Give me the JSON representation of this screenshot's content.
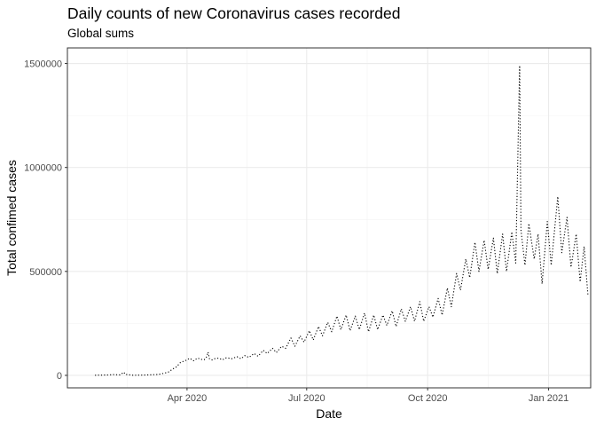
{
  "chart_data": {
    "type": "line",
    "title": "Daily counts of new Coronavirus cases recorded",
    "subtitle": "Global sums",
    "xlabel": "Date",
    "ylabel": "Total confimed cases",
    "x_ticks": [
      {
        "label": "Apr 2020",
        "date": "2020-04-01"
      },
      {
        "label": "Jul 2020",
        "date": "2020-07-01"
      },
      {
        "label": "Oct 2020",
        "date": "2020-10-01"
      },
      {
        "label": "Jan 2021",
        "date": "2021-01-01"
      }
    ],
    "y_ticks": [
      0,
      500000,
      1000000,
      1500000
    ],
    "xlim": [
      "2020-01-01",
      "2021-02-02"
    ],
    "ylim": [
      -60000,
      1575000
    ],
    "grid": true,
    "line_style": "dotted",
    "line_color": "#000000",
    "series": [
      {
        "values": [
          [
            "2020-01-22",
            550
          ],
          [
            "2020-02-01",
            2100
          ],
          [
            "2020-02-05",
            3700
          ],
          [
            "2020-02-10",
            2500
          ],
          [
            "2020-02-13",
            15100
          ],
          [
            "2020-02-14",
            5000
          ],
          [
            "2020-02-20",
            600
          ],
          [
            "2020-02-25",
            1000
          ],
          [
            "2020-03-01",
            1900
          ],
          [
            "2020-03-05",
            2800
          ],
          [
            "2020-03-10",
            4500
          ],
          [
            "2020-03-15",
            11000
          ],
          [
            "2020-03-18",
            16500
          ],
          [
            "2020-03-21",
            30000
          ],
          [
            "2020-03-24",
            41000
          ],
          [
            "2020-03-27",
            62000
          ],
          [
            "2020-03-31",
            72000
          ],
          [
            "2020-04-03",
            82000
          ],
          [
            "2020-04-06",
            70000
          ],
          [
            "2020-04-09",
            83000
          ],
          [
            "2020-04-12",
            77000
          ],
          [
            "2020-04-14",
            75000
          ],
          [
            "2020-04-16",
            90000
          ],
          [
            "2020-04-17",
            112000
          ],
          [
            "2020-04-18",
            80000
          ],
          [
            "2020-04-20",
            74000
          ],
          [
            "2020-04-22",
            80000
          ],
          [
            "2020-04-25",
            83000
          ],
          [
            "2020-04-28",
            75000
          ],
          [
            "2020-05-01",
            85000
          ],
          [
            "2020-05-05",
            80000
          ],
          [
            "2020-05-09",
            90000
          ],
          [
            "2020-05-12",
            80000
          ],
          [
            "2020-05-15",
            95000
          ],
          [
            "2020-05-18",
            86000
          ],
          [
            "2020-05-22",
            105000
          ],
          [
            "2020-05-25",
            92000
          ],
          [
            "2020-05-29",
            120000
          ],
          [
            "2020-06-01",
            105000
          ],
          [
            "2020-06-05",
            130000
          ],
          [
            "2020-06-08",
            110000
          ],
          [
            "2020-06-12",
            140000
          ],
          [
            "2020-06-15",
            130000
          ],
          [
            "2020-06-19",
            180000
          ],
          [
            "2020-06-22",
            140000
          ],
          [
            "2020-06-26",
            190000
          ],
          [
            "2020-06-29",
            160000
          ],
          [
            "2020-07-03",
            215000
          ],
          [
            "2020-07-06",
            170000
          ],
          [
            "2020-07-10",
            235000
          ],
          [
            "2020-07-13",
            190000
          ],
          [
            "2020-07-17",
            255000
          ],
          [
            "2020-07-20",
            210000
          ],
          [
            "2020-07-24",
            285000
          ],
          [
            "2020-07-27",
            220000
          ],
          [
            "2020-07-31",
            290000
          ],
          [
            "2020-08-03",
            215000
          ],
          [
            "2020-08-07",
            285000
          ],
          [
            "2020-08-10",
            220000
          ],
          [
            "2020-08-14",
            300000
          ],
          [
            "2020-08-17",
            210000
          ],
          [
            "2020-08-21",
            290000
          ],
          [
            "2020-08-24",
            220000
          ],
          [
            "2020-08-28",
            290000
          ],
          [
            "2020-08-31",
            240000
          ],
          [
            "2020-09-04",
            310000
          ],
          [
            "2020-09-07",
            235000
          ],
          [
            "2020-09-11",
            320000
          ],
          [
            "2020-09-14",
            260000
          ],
          [
            "2020-09-18",
            330000
          ],
          [
            "2020-09-21",
            260000
          ],
          [
            "2020-09-25",
            355000
          ],
          [
            "2020-09-28",
            260000
          ],
          [
            "2020-10-02",
            330000
          ],
          [
            "2020-10-05",
            280000
          ],
          [
            "2020-10-09",
            370000
          ],
          [
            "2020-10-12",
            290000
          ],
          [
            "2020-10-16",
            420000
          ],
          [
            "2020-10-19",
            330000
          ],
          [
            "2020-10-23",
            490000
          ],
          [
            "2020-10-26",
            410000
          ],
          [
            "2020-10-30",
            560000
          ],
          [
            "2020-11-02",
            470000
          ],
          [
            "2020-11-06",
            640000
          ],
          [
            "2020-11-09",
            500000
          ],
          [
            "2020-11-13",
            650000
          ],
          [
            "2020-11-16",
            510000
          ],
          [
            "2020-11-20",
            660000
          ],
          [
            "2020-11-23",
            490000
          ],
          [
            "2020-11-27",
            680000
          ],
          [
            "2020-11-30",
            500000
          ],
          [
            "2020-12-04",
            690000
          ],
          [
            "2020-12-07",
            540000
          ],
          [
            "2020-12-10",
            1490000
          ],
          [
            "2020-12-11",
            700000
          ],
          [
            "2020-12-14",
            530000
          ],
          [
            "2020-12-17",
            730000
          ],
          [
            "2020-12-21",
            560000
          ],
          [
            "2020-12-24",
            680000
          ],
          [
            "2020-12-27",
            440000
          ],
          [
            "2020-12-31",
            740000
          ],
          [
            "2021-01-03",
            530000
          ],
          [
            "2021-01-08",
            860000
          ],
          [
            "2021-01-11",
            590000
          ],
          [
            "2021-01-15",
            760000
          ],
          [
            "2021-01-18",
            520000
          ],
          [
            "2021-01-22",
            680000
          ],
          [
            "2021-01-25",
            450000
          ],
          [
            "2021-01-28",
            620000
          ],
          [
            "2021-01-31",
            380000
          ]
        ]
      }
    ]
  }
}
